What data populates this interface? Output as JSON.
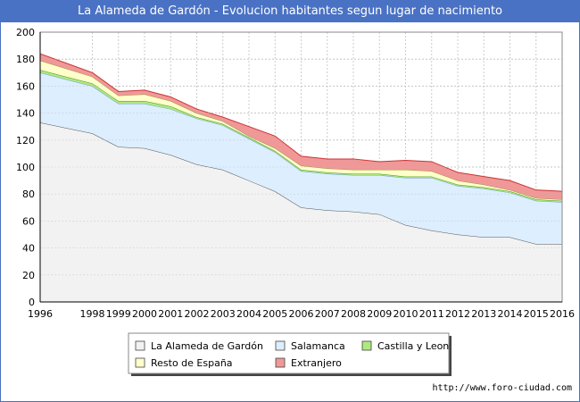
{
  "title": "La Alameda de Gardón - Evolucion habitantes segun lugar de nacimiento",
  "footer_url": "http://www.foro-ciudad.com",
  "chart_data": {
    "type": "area",
    "stacked": true,
    "x": [
      1996,
      1997,
      1998,
      1999,
      2000,
      2001,
      2002,
      2003,
      2004,
      2005,
      2006,
      2007,
      2008,
      2009,
      2010,
      2011,
      2012,
      2013,
      2014,
      2015,
      2016
    ],
    "xticks": [
      1996,
      1998,
      1999,
      2000,
      2001,
      2002,
      2003,
      2004,
      2005,
      2006,
      2007,
      2008,
      2009,
      2010,
      2011,
      2012,
      2013,
      2014,
      2015,
      2016
    ],
    "ylim": [
      0,
      200
    ],
    "yticks": [
      0,
      20,
      40,
      60,
      80,
      100,
      120,
      140,
      160,
      180,
      200
    ],
    "grid": true,
    "legend_position": "bottom",
    "series": [
      {
        "name": "La Alameda de Gardón",
        "color": "#f2f2f2",
        "line": "#555555",
        "values": [
          133,
          129,
          125,
          115,
          114,
          109,
          102,
          98,
          90,
          82,
          70,
          68,
          67,
          65,
          57,
          53,
          50,
          48,
          48,
          43,
          43
        ]
      },
      {
        "name": "Salamanca",
        "color": "#ddeeff",
        "line": "#7aa0d0",
        "values": [
          37,
          36,
          35,
          32,
          33,
          34,
          34,
          33,
          31,
          29,
          27,
          27,
          27,
          29,
          35,
          39,
          36,
          36,
          33,
          32,
          31
        ]
      },
      {
        "name": "Castilla y Leon",
        "color": "#b0e880",
        "line": "#449922",
        "values": [
          2,
          2,
          2,
          2,
          2,
          2,
          1,
          1,
          1,
          1,
          1,
          1,
          1,
          1,
          1,
          1,
          1,
          1,
          1,
          1,
          1
        ]
      },
      {
        "name": "Resto de España",
        "color": "#ffffcc",
        "line": "#999944",
        "values": [
          7,
          6,
          5,
          4,
          5,
          4,
          3,
          2,
          1,
          2,
          3,
          3,
          3,
          3,
          5,
          4,
          3,
          2,
          1,
          1,
          1
        ]
      },
      {
        "name": "Extranjero",
        "color": "#f09898",
        "line": "#cc3333",
        "values": [
          5,
          4,
          3,
          3,
          3,
          3,
          3,
          3,
          7,
          9,
          7,
          7,
          8,
          6,
          7,
          7,
          6,
          6,
          7,
          6,
          6
        ]
      }
    ],
    "legend_layout": [
      [
        "La Alameda de Gardón",
        "Salamanca",
        "Castilla y Leon"
      ],
      [
        "Resto de España",
        "Extranjero"
      ]
    ]
  }
}
